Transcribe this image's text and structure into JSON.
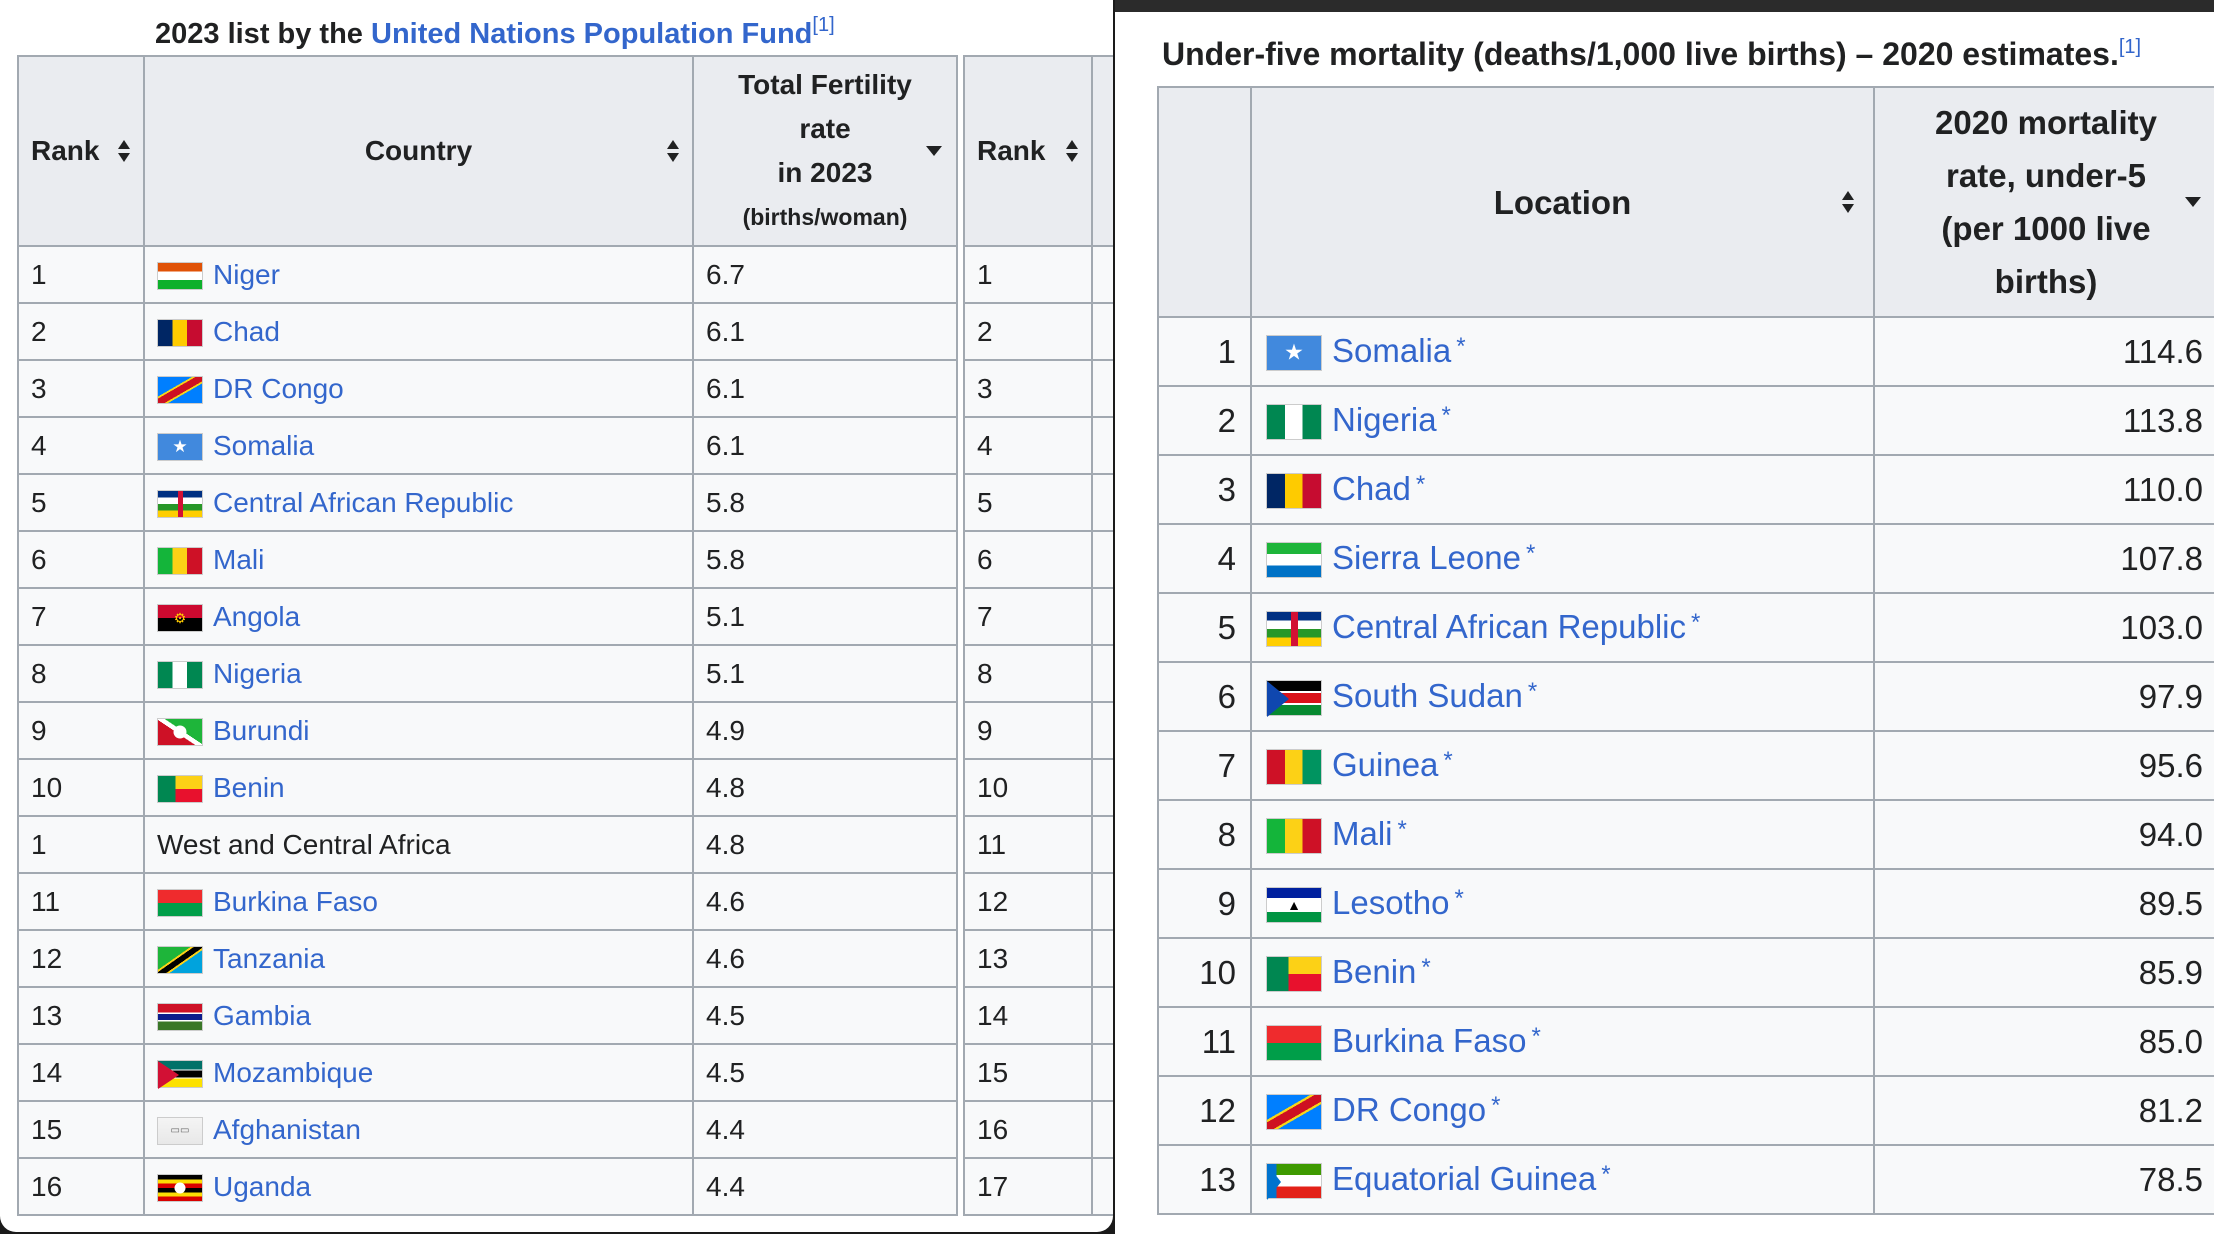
{
  "left": {
    "caption_prefix": "2023 list by the ",
    "caption_link": "United Nations Population Fund",
    "caption_ref": "[1]",
    "headers": {
      "rank": "Rank",
      "country": "Country",
      "tfr_line1": "Total Fertility",
      "tfr_line2": "rate",
      "tfr_line3": "in 2023",
      "tfr_line4": "(births/woman)"
    },
    "rows": [
      {
        "rank": "1",
        "country": "Niger",
        "flag": "niger",
        "value": "6.7"
      },
      {
        "rank": "2",
        "country": "Chad",
        "flag": "chad",
        "value": "6.1"
      },
      {
        "rank": "3",
        "country": "DR Congo",
        "flag": "drc",
        "value": "6.1"
      },
      {
        "rank": "4",
        "country": "Somalia",
        "flag": "somalia",
        "value": "6.1"
      },
      {
        "rank": "5",
        "country": "Central African Republic",
        "flag": "car",
        "value": "5.8"
      },
      {
        "rank": "6",
        "country": "Mali",
        "flag": "mali",
        "value": "5.8"
      },
      {
        "rank": "7",
        "country": "Angola",
        "flag": "angola",
        "value": "5.1"
      },
      {
        "rank": "8",
        "country": "Nigeria",
        "flag": "nigeria",
        "value": "5.1"
      },
      {
        "rank": "9",
        "country": "Burundi",
        "flag": "burundi",
        "value": "4.9"
      },
      {
        "rank": "10",
        "country": "Benin",
        "flag": "benin",
        "value": "4.8"
      },
      {
        "rank": "1",
        "country": "West and Central Africa",
        "flag": "",
        "value": "4.8"
      },
      {
        "rank": "11",
        "country": "Burkina Faso",
        "flag": "burkina",
        "value": "4.6"
      },
      {
        "rank": "12",
        "country": "Tanzania",
        "flag": "tanzania",
        "value": "4.6"
      },
      {
        "rank": "13",
        "country": "Gambia",
        "flag": "gambia",
        "value": "4.5"
      },
      {
        "rank": "14",
        "country": "Mozambique",
        "flag": "mozambique",
        "value": "4.5"
      },
      {
        "rank": "15",
        "country": "Afghanistan",
        "flag": "afghanistan",
        "value": "4.4"
      },
      {
        "rank": "16",
        "country": "Uganda",
        "flag": "uganda",
        "value": "4.4"
      }
    ],
    "second_table_ranks": [
      "1",
      "2",
      "3",
      "4",
      "5",
      "6",
      "7",
      "8",
      "9",
      "10",
      "11",
      "12",
      "13",
      "14",
      "15",
      "16",
      "17"
    ]
  },
  "right": {
    "caption": "Under-five mortality (deaths/1,000 live births) – 2020 estimates.",
    "caption_ref": "[1]",
    "headers": {
      "location": "Location",
      "rate_line1": "2020 mortality",
      "rate_line2": "rate, under-5",
      "rate_line3": "(per 1000 live",
      "rate_line4": "births)"
    },
    "rows": [
      {
        "rank": "1",
        "location": "Somalia",
        "flag": "somalia",
        "value": "114.6"
      },
      {
        "rank": "2",
        "location": "Nigeria",
        "flag": "nigeria",
        "value": "113.8"
      },
      {
        "rank": "3",
        "location": "Chad",
        "flag": "chad",
        "value": "110.0"
      },
      {
        "rank": "4",
        "location": "Sierra Leone",
        "flag": "sierraleone",
        "value": "107.8"
      },
      {
        "rank": "5",
        "location": "Central African Republic",
        "flag": "car",
        "value": "103.0"
      },
      {
        "rank": "6",
        "location": "South Sudan",
        "flag": "southsudan",
        "value": "97.9"
      },
      {
        "rank": "7",
        "location": "Guinea",
        "flag": "guinea",
        "value": "95.6"
      },
      {
        "rank": "8",
        "location": "Mali",
        "flag": "mali",
        "value": "94.0"
      },
      {
        "rank": "9",
        "location": "Lesotho",
        "flag": "lesotho",
        "value": "89.5"
      },
      {
        "rank": "10",
        "location": "Benin",
        "flag": "benin",
        "value": "85.9"
      },
      {
        "rank": "11",
        "location": "Burkina Faso",
        "flag": "burkina",
        "value": "85.0"
      },
      {
        "rank": "12",
        "location": "DR Congo",
        "flag": "drc",
        "value": "81.2"
      },
      {
        "rank": "13",
        "location": "Equatorial Guinea",
        "flag": "eqguinea",
        "value": "78.5"
      }
    ],
    "marker": "*"
  },
  "colors": {
    "link": "#3366cc",
    "header_bg": "#eaecf0",
    "cell_bg": "#f8f9fa",
    "border": "#a2a9b1"
  }
}
